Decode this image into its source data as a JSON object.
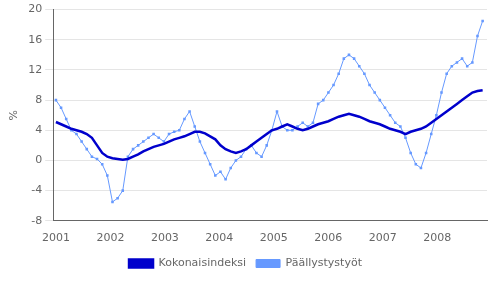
{
  "chart_data": {
    "type": "line",
    "ylabel": "%",
    "x": [
      2001.0,
      2001.0944,
      2001.1887,
      2001.2831,
      2001.3775,
      2001.4719,
      2001.5662,
      2001.6606,
      2001.755,
      2001.8494,
      2001.9437,
      2002.0381,
      2002.1325,
      2002.2269,
      2002.3212,
      2002.4156,
      2002.51,
      2002.6043,
      2002.6987,
      2002.7931,
      2002.8875,
      2002.9818,
      2003.0762,
      2003.1706,
      2003.265,
      2003.3593,
      2003.4537,
      2003.5481,
      2003.6425,
      2003.7368,
      2003.8312,
      2003.9256,
      2004.02,
      2004.1143,
      2004.2087,
      2004.3031,
      2004.3974,
      2004.4918,
      2004.5862,
      2004.6806,
      2004.7749,
      2004.8693,
      2004.9637,
      2005.0581,
      2005.1524,
      2005.2468,
      2005.3412,
      2005.4356,
      2005.5299,
      2005.6243,
      2005.7187,
      2005.813,
      2005.9074,
      2006.0018,
      2006.0962,
      2006.1905,
      2006.2849,
      2006.3793,
      2006.4737,
      2006.568,
      2006.6624,
      2006.7568,
      2006.8512,
      2006.9455,
      2007.0399,
      2007.1343,
      2007.2287,
      2007.323,
      2007.4174,
      2007.5118,
      2007.6061,
      2007.7005,
      2007.7949,
      2007.8893,
      2007.9836,
      2008.078,
      2008.1724,
      2008.2668,
      2008.3611,
      2008.4555,
      2008.5499,
      2008.6443,
      2008.7386,
      2008.833
    ],
    "series": [
      {
        "name": "Kokonaisindeksi",
        "color": "#0000CC",
        "line_style": "solid",
        "marker": "none",
        "values": [
          5.1,
          4.8,
          4.5,
          4.2,
          4.0,
          3.8,
          3.5,
          3.0,
          2.0,
          1.0,
          0.5,
          0.3,
          0.2,
          0.1,
          0.2,
          0.5,
          0.8,
          1.2,
          1.5,
          1.8,
          2.0,
          2.2,
          2.5,
          2.8,
          3.0,
          3.2,
          3.5,
          3.8,
          3.8,
          3.6,
          3.2,
          2.8,
          2.0,
          1.5,
          1.2,
          1.0,
          1.2,
          1.5,
          2.0,
          2.5,
          3.0,
          3.5,
          4.0,
          4.2,
          4.5,
          4.8,
          4.5,
          4.2,
          4.0,
          4.2,
          4.5,
          4.8,
          5.0,
          5.2,
          5.5,
          5.8,
          6.0,
          6.2,
          6.0,
          5.8,
          5.5,
          5.2,
          5.0,
          4.8,
          4.5,
          4.2,
          4.0,
          3.8,
          3.5,
          3.8,
          4.0,
          4.2,
          4.5,
          5.0,
          5.5,
          6.0,
          6.5,
          7.0,
          7.5,
          8.0,
          8.5,
          9.0,
          9.2,
          9.3
        ]
      },
      {
        "name": "Päällystystyöt",
        "color": "#6699FF",
        "line_style": "solid",
        "marker": "square",
        "values": [
          8.0,
          7.0,
          5.5,
          4.0,
          3.5,
          2.5,
          1.5,
          0.5,
          0.2,
          -0.5,
          -2.0,
          -5.5,
          -5.0,
          -4.0,
          0.5,
          1.5,
          2.0,
          2.5,
          3.0,
          3.5,
          3.0,
          2.5,
          3.5,
          3.8,
          4.0,
          5.5,
          6.5,
          4.5,
          2.5,
          1.0,
          -0.5,
          -2.0,
          -1.5,
          -2.5,
          -1.0,
          0.0,
          0.5,
          1.5,
          2.0,
          1.0,
          0.5,
          2.0,
          4.0,
          6.5,
          4.5,
          4.0,
          4.0,
          4.5,
          5.0,
          4.5,
          5.0,
          7.5,
          8.0,
          9.0,
          10.0,
          11.5,
          13.5,
          14.0,
          13.5,
          12.5,
          11.5,
          10.0,
          9.0,
          8.0,
          7.0,
          6.0,
          5.0,
          4.5,
          3.0,
          1.0,
          -0.5,
          -1.0,
          1.0,
          3.5,
          6.0,
          9.0,
          11.5,
          12.5,
          13.0,
          13.5,
          12.5,
          13.0,
          16.5,
          18.5
        ]
      }
    ],
    "xlim": [
      2000.95,
      2008.913
    ],
    "xticks": [
      2001,
      2002,
      2003,
      2004,
      2005,
      2006,
      2007,
      2008
    ],
    "ylim": [
      -8,
      20
    ],
    "yticks": [
      -8,
      -4,
      0,
      4,
      8,
      12,
      16,
      20
    ],
    "grid": "y",
    "legend": "bottom"
  }
}
